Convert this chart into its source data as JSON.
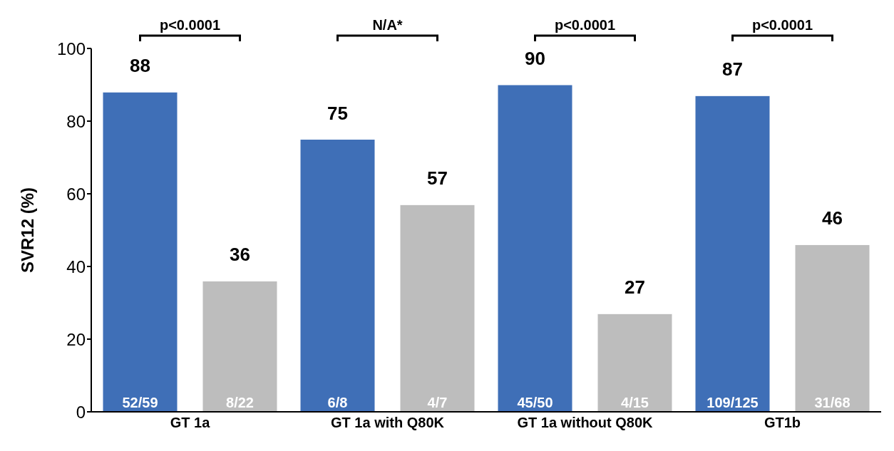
{
  "chart_data": {
    "type": "bar",
    "ylabel": "SVR12 (%)",
    "categories": [
      "GT 1a",
      "GT 1a with Q80K",
      "GT 1a without Q80K",
      "GT1b"
    ],
    "series": [
      {
        "color": "#3f6fb7",
        "values": [
          88,
          75,
          90,
          87
        ]
      },
      {
        "color": "#bdbdbd",
        "values": [
          36,
          57,
          27,
          46
        ]
      }
    ],
    "ylim": [
      0,
      100
    ],
    "yticks": [
      0,
      20,
      40,
      60,
      80,
      100
    ],
    "data_labels": true,
    "annotations": [
      "p<0.0001",
      "N/A*",
      "p<0.0001",
      "p<0.0001",
      "52/59",
      "8/22",
      "6/8",
      "4/7",
      "45/50",
      "4/15",
      "109/125",
      "31/68"
    ]
  }
}
